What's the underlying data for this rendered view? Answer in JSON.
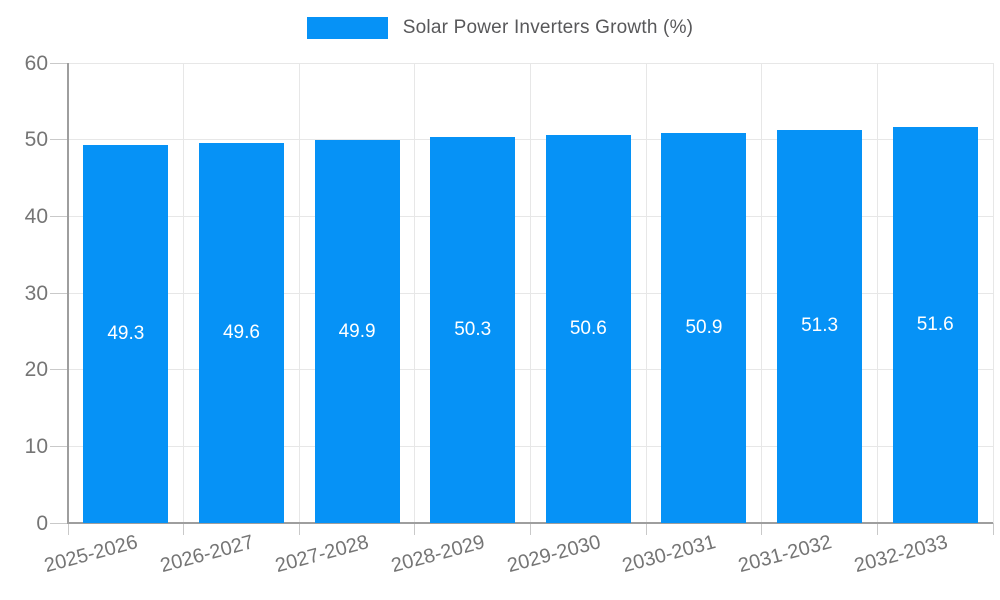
{
  "legend": {
    "label": "Solar Power Inverters Growth (%)"
  },
  "colors": {
    "bar": "#0692F6",
    "grid": "#e7e7e7",
    "axis": "#9e9e9e",
    "tick": "#c9c9c9",
    "tick_label": "#757575",
    "title_text": "#58585a",
    "bar_label": "#ffffff",
    "background": "#ffffff"
  },
  "chart_data": {
    "type": "bar",
    "title": "Solar Power Inverters Growth (%)",
    "categories": [
      "2025-2026",
      "2026-2027",
      "2027-2028",
      "2028-2029",
      "2029-2030",
      "2030-2031",
      "2031-2032",
      "2032-2033"
    ],
    "values": [
      49.3,
      49.6,
      49.9,
      50.3,
      50.6,
      50.9,
      51.3,
      51.6
    ],
    "bar_value_labels": [
      "49.3",
      "49.6",
      "49.9",
      "50.3",
      "50.6",
      "50.9",
      "51.3",
      "51.6"
    ],
    "xlabel": "",
    "ylabel": "",
    "ylim": [
      0,
      60
    ],
    "yticks": [
      0,
      10,
      20,
      30,
      40,
      50,
      60
    ],
    "ytick_labels": [
      "0",
      "10",
      "20",
      "30",
      "40",
      "50",
      "60"
    ],
    "grid": true,
    "legend_position": "top",
    "bar_labels_inside": "center",
    "x_tick_rotation_deg": -15
  }
}
